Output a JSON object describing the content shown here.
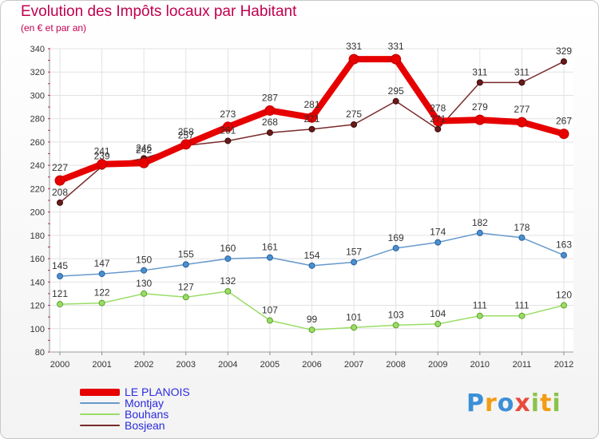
{
  "title": "Evolution des Impôts locaux par Habitant",
  "subtitle": "(en € et par an)",
  "chart_data": {
    "type": "line",
    "title": "Evolution des Impôts locaux par Habitant",
    "subtitle": "(en € et par an)",
    "xlabel": "",
    "ylabel": "",
    "ylim": [
      80,
      340
    ],
    "yticks": [
      "80",
      "100",
      "120",
      "140",
      "160",
      "180",
      "200",
      "220",
      "240",
      "260",
      "280",
      "300",
      "320",
      "340"
    ],
    "categories": [
      "2000",
      "2001",
      "2002",
      "2003",
      "2004",
      "2005",
      "2006",
      "2007",
      "2008",
      "2009",
      "2010",
      "2011",
      "2012"
    ],
    "grid": true,
    "series": [
      {
        "name": "LE PLANOIS",
        "color": "#e60000",
        "values": [
          227,
          241,
          242,
          258,
          273,
          287,
          281,
          331,
          331,
          278,
          279,
          277,
          267
        ]
      },
      {
        "name": "Montjay",
        "color": "#6699cc",
        "values": [
          145,
          147,
          150,
          155,
          160,
          161,
          154,
          157,
          169,
          174,
          182,
          178,
          163
        ]
      },
      {
        "name": "Bouhans",
        "color": "#99dd66",
        "values": [
          121,
          122,
          130,
          127,
          132,
          107,
          99,
          101,
          103,
          104,
          111,
          111,
          120
        ]
      },
      {
        "name": "Bosjean",
        "color": "#7a2a2a",
        "values": [
          208,
          239,
          246,
          257,
          261,
          268,
          271,
          275,
          295,
          271,
          311,
          311,
          329
        ]
      }
    ]
  },
  "logo": {
    "letters": [
      "P",
      "r",
      "o",
      "x",
      "i",
      "t",
      "i"
    ],
    "colors": [
      "#3b8fd6",
      "#f39c12",
      "#3b8fd6",
      "#e74c3c",
      "#8bc34a",
      "#f39c12",
      "#8bc34a"
    ]
  }
}
